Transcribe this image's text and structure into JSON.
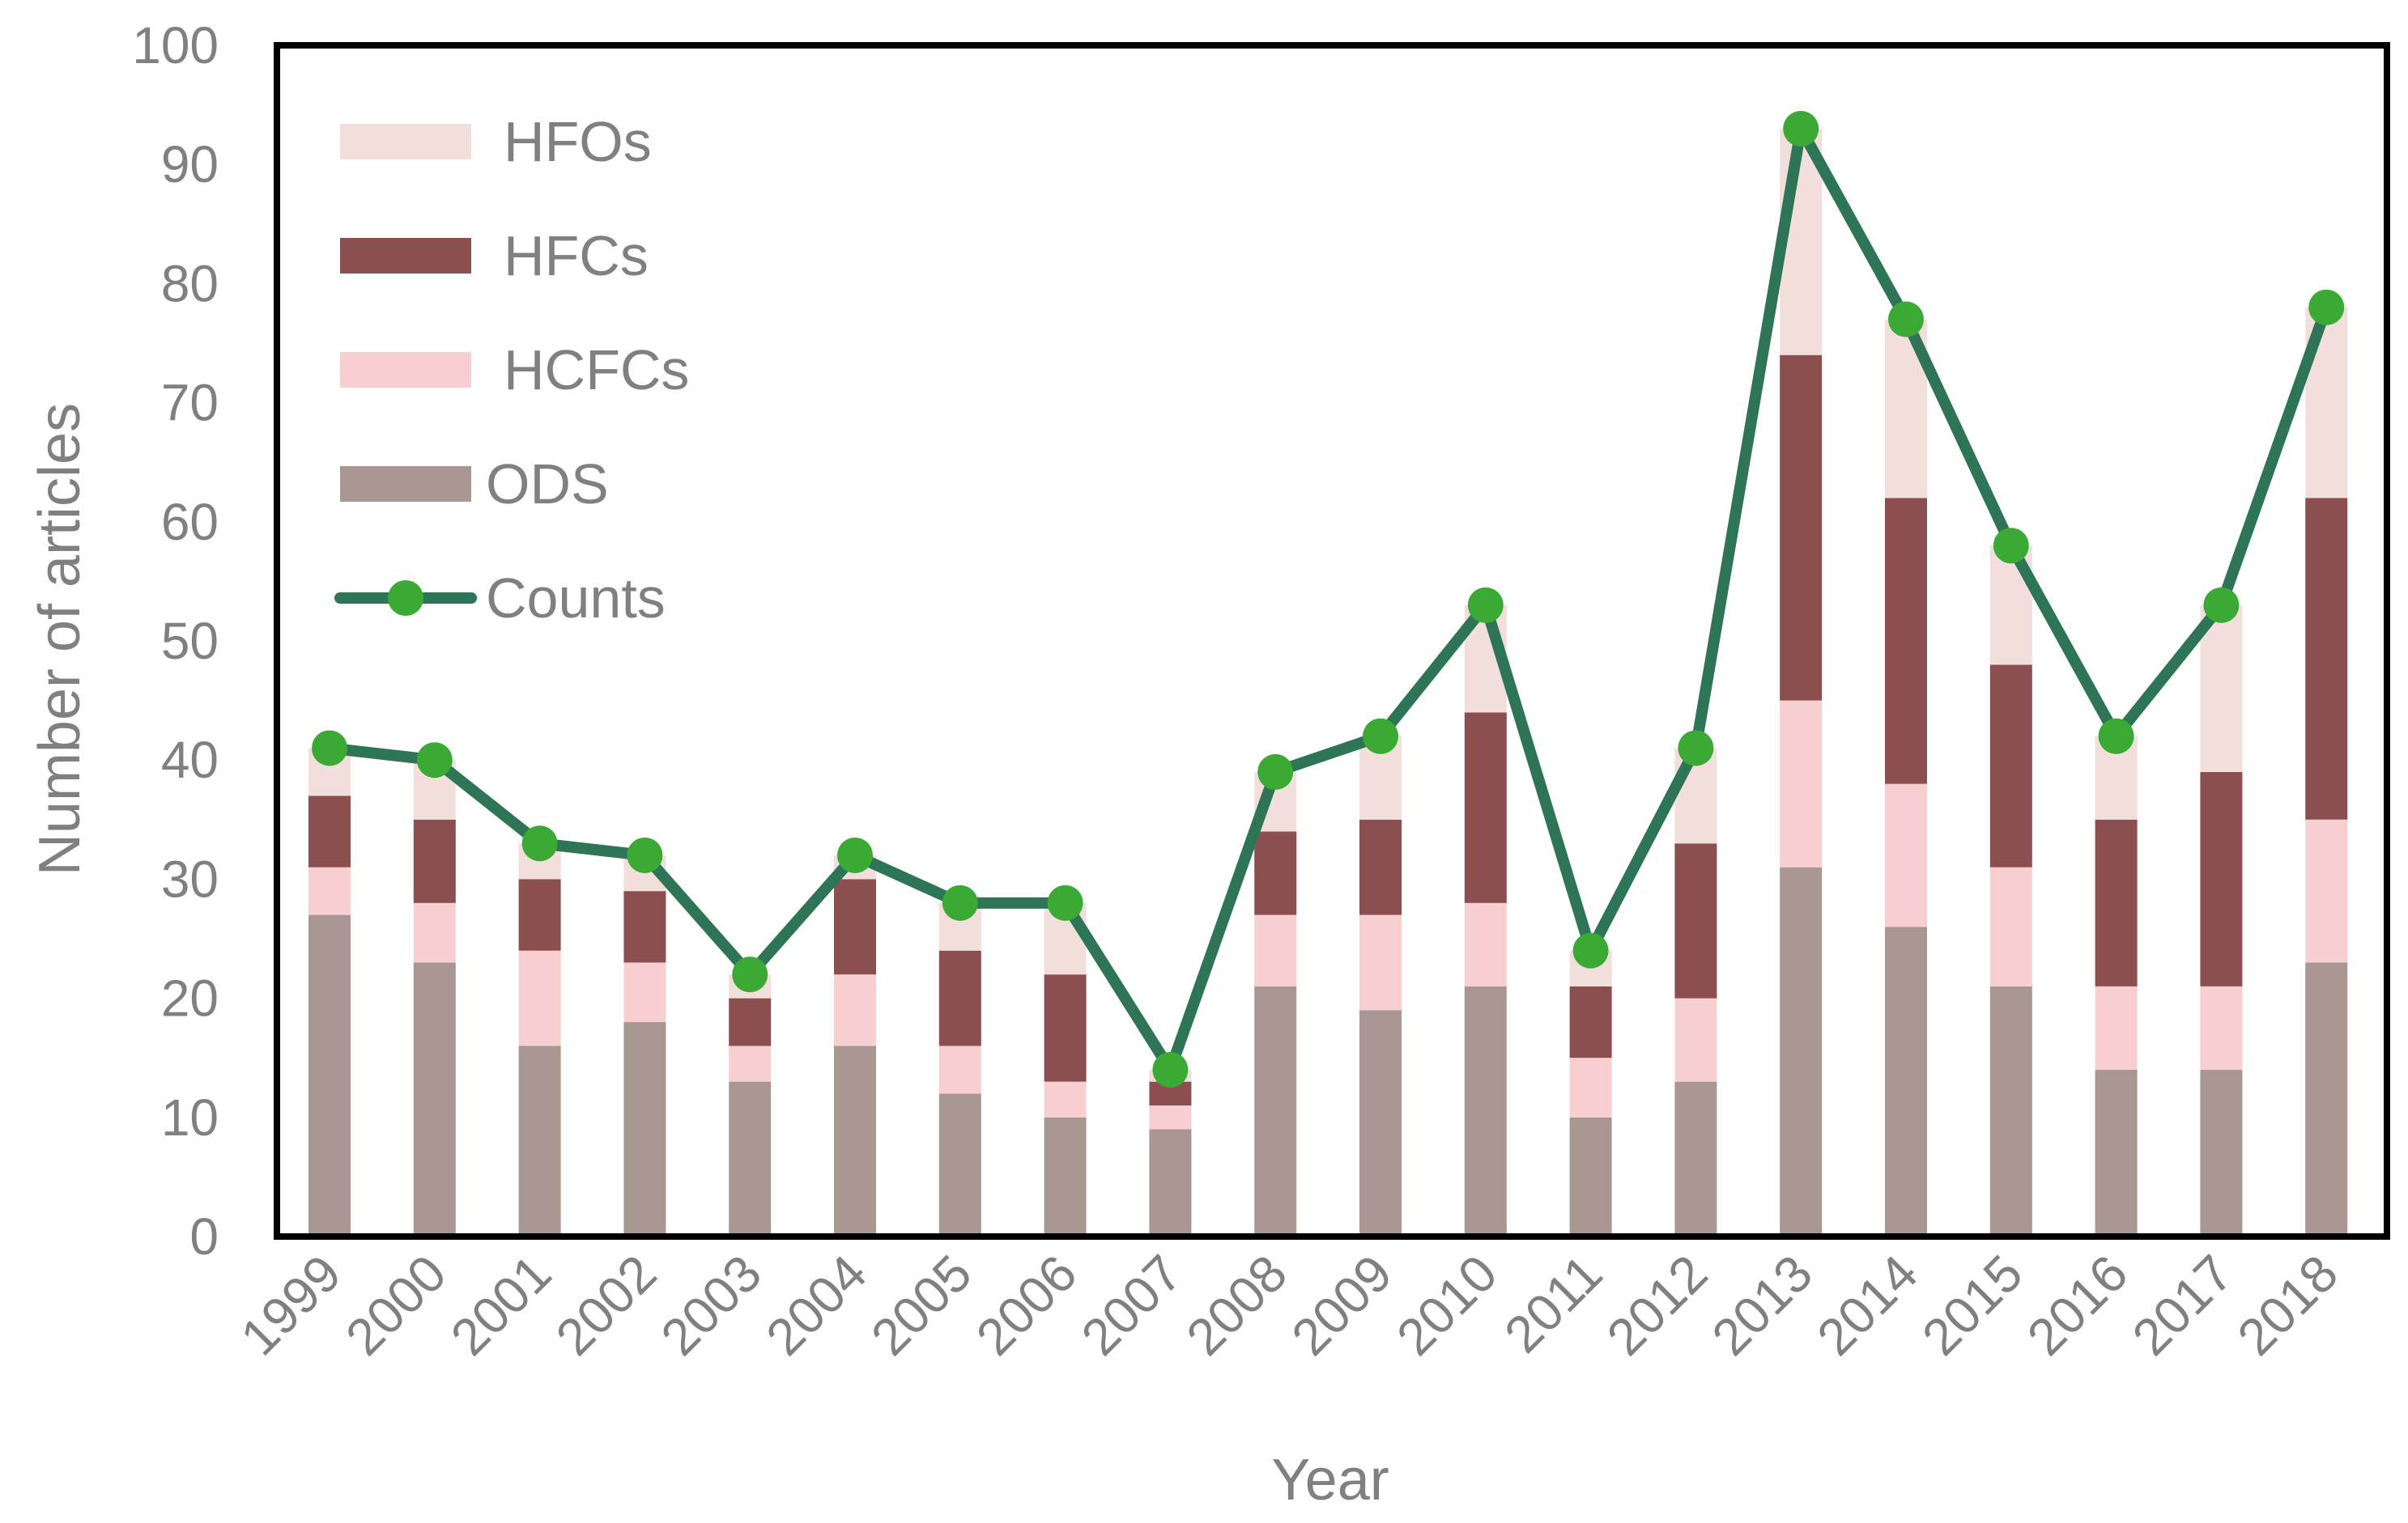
{
  "chart_data": {
    "type": "bar",
    "stacked": true,
    "title": "",
    "xlabel": "Year",
    "ylabel": "Number of articles",
    "ylim": [
      0,
      100
    ],
    "yticks": [
      0,
      10,
      20,
      30,
      40,
      50,
      60,
      70,
      80,
      90,
      100
    ],
    "grid": false,
    "legend_position": "top-left",
    "categories": [
      "1999",
      "2000",
      "2001",
      "2002",
      "2003",
      "2004",
      "2005",
      "2006",
      "2007",
      "2008",
      "2009",
      "2010",
      "2011",
      "2012",
      "2013",
      "2014",
      "2015",
      "2016",
      "2017",
      "2018"
    ],
    "series": [
      {
        "name": "ODS",
        "kind": "bar",
        "color": "#a89790",
        "values": [
          27,
          23,
          16,
          18,
          13,
          16,
          12,
          10,
          9,
          21,
          19,
          21,
          10,
          13,
          31,
          26,
          21,
          14,
          14,
          23
        ]
      },
      {
        "name": "HCFCs",
        "kind": "bar",
        "color": "#f8cfd0",
        "values": [
          4,
          5,
          8,
          5,
          3,
          6,
          4,
          3,
          2,
          6,
          8,
          7,
          5,
          7,
          14,
          12,
          10,
          7,
          7,
          12
        ]
      },
      {
        "name": "HFCs",
        "kind": "bar",
        "color": "#8c4f4f",
        "values": [
          6,
          7,
          6,
          6,
          4,
          8,
          8,
          9,
          2,
          7,
          8,
          16,
          6,
          13,
          29,
          24,
          17,
          14,
          18,
          27
        ]
      },
      {
        "name": "HFOs",
        "kind": "bar",
        "color": "#f2dfdc",
        "values": [
          4,
          5,
          3,
          3,
          2,
          2,
          4,
          6,
          1,
          5,
          7,
          9,
          3,
          8,
          19,
          15,
          10,
          7,
          14,
          16
        ]
      },
      {
        "name": "Counts",
        "kind": "line",
        "color": "#2e7557",
        "marker_color": "#3aaa35",
        "values": [
          41,
          40,
          33,
          32,
          22,
          32,
          28,
          28,
          14,
          39,
          42,
          53,
          24,
          41,
          93,
          77,
          58,
          42,
          53,
          78
        ]
      }
    ],
    "legend_order": [
      "HFOs",
      "HFCs",
      "HCFCs",
      "ODS",
      "Counts"
    ]
  }
}
